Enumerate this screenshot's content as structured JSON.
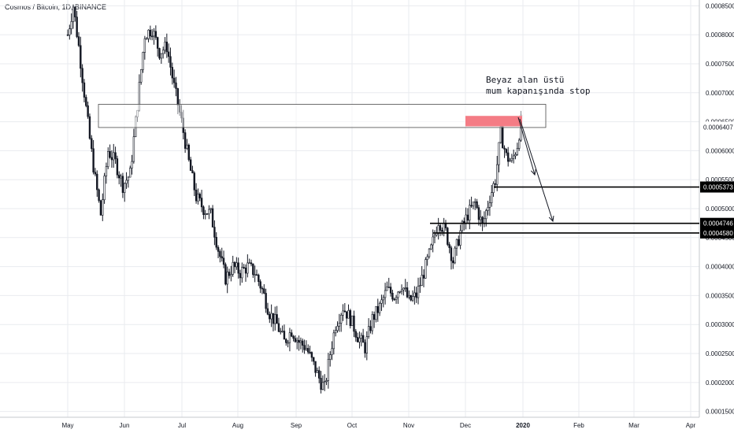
{
  "header": {
    "symbol_title": "Cosmos / Bitcoin, 1D, BINANCE"
  },
  "annotation": {
    "line1": "Beyaz alan üstü",
    "line2": "mum kapanışında stop"
  },
  "colors": {
    "candle": "#131722",
    "stop_zone": "#f47c85",
    "axis_text": "#131722",
    "grid": "#e9ebef"
  },
  "chart_data": {
    "type": "candlestick",
    "x_axis": {
      "ticks": [
        "May",
        "Jun",
        "Jul",
        "Aug",
        "Sep",
        "Oct",
        "Nov",
        "Dec",
        "2020",
        "Feb",
        "Mar",
        "Apr"
      ]
    },
    "y_axis": {
      "range": [
        0.00014,
        0.00086
      ],
      "ticks": [
        "0.0008500",
        "0.0008000",
        "0.0007500",
        "0.0007000",
        "0.0006500",
        "0.0006000",
        "0.0005500",
        "0.0005000",
        "0.0004500",
        "0.0004000",
        "0.0003500",
        "0.0003000",
        "0.0002500",
        "0.0002000",
        "0.0001500"
      ]
    },
    "price_path": [
      [
        0,
        0.0008
      ],
      [
        3,
        0.00085
      ],
      [
        6,
        0.00078
      ],
      [
        9,
        0.0007
      ],
      [
        12,
        0.00062
      ],
      [
        15,
        0.00055
      ],
      [
        18,
        0.00049
      ],
      [
        22,
        0.0006
      ],
      [
        26,
        0.00058
      ],
      [
        30,
        0.00054
      ],
      [
        34,
        0.00056
      ],
      [
        38,
        0.00068
      ],
      [
        42,
        0.0008
      ],
      [
        46,
        0.00081
      ],
      [
        50,
        0.00077
      ],
      [
        54,
        0.00078
      ],
      [
        58,
        0.00071
      ],
      [
        62,
        0.00065
      ],
      [
        66,
        0.00058
      ],
      [
        70,
        0.00052
      ],
      [
        74,
        0.0005
      ],
      [
        78,
        0.00049
      ],
      [
        82,
        0.00043
      ],
      [
        86,
        0.00038
      ],
      [
        90,
        0.0004
      ],
      [
        94,
        0.00039
      ],
      [
        98,
        0.0004
      ],
      [
        102,
        0.00039
      ],
      [
        106,
        0.00036
      ],
      [
        110,
        0.00032
      ],
      [
        114,
        0.0003
      ],
      [
        118,
        0.00027
      ],
      [
        122,
        0.00029
      ],
      [
        126,
        0.00027
      ],
      [
        130,
        0.00026
      ],
      [
        134,
        0.00023
      ],
      [
        138,
        0.0002
      ],
      [
        140,
        0.00019
      ],
      [
        143,
        0.00025
      ],
      [
        146,
        0.0003
      ],
      [
        150,
        0.00033
      ],
      [
        154,
        0.00031
      ],
      [
        158,
        0.00028
      ],
      [
        162,
        0.00026
      ],
      [
        166,
        0.00031
      ],
      [
        170,
        0.00033
      ],
      [
        174,
        0.00036
      ],
      [
        178,
        0.00035
      ],
      [
        182,
        0.00037
      ],
      [
        186,
        0.00034
      ],
      [
        190,
        0.00035
      ],
      [
        194,
        0.00039
      ],
      [
        198,
        0.00043
      ],
      [
        202,
        0.00048
      ],
      [
        206,
        0.00046
      ],
      [
        210,
        0.00041
      ],
      [
        214,
        0.00046
      ],
      [
        218,
        0.00049
      ],
      [
        222,
        0.00051
      ],
      [
        226,
        0.00047
      ],
      [
        230,
        0.00052
      ],
      [
        233,
        0.00055
      ],
      [
        236,
        0.00063
      ],
      [
        239,
        0.00059
      ],
      [
        242,
        0.00058
      ],
      [
        245,
        0.00061
      ],
      [
        247,
        0.00065
      ]
    ],
    "levels": [
      {
        "label": "0.0006407",
        "value": 0.0006407,
        "style": "last-price"
      },
      {
        "label": "0.0005373",
        "value": 0.0005373,
        "style": "target"
      },
      {
        "label": "0.0004746",
        "value": 0.0004746,
        "style": "target"
      },
      {
        "label": "0.0004580",
        "value": 0.000458,
        "style": "target"
      }
    ],
    "zones": [
      {
        "name": "white-zone",
        "y_top": 0.00068,
        "y_bottom": 0.00064,
        "fill": "#ffffff"
      },
      {
        "name": "stop-zone",
        "y_top": 0.00066,
        "y_bottom": 0.000642,
        "fill": "#f47c85"
      }
    ]
  }
}
